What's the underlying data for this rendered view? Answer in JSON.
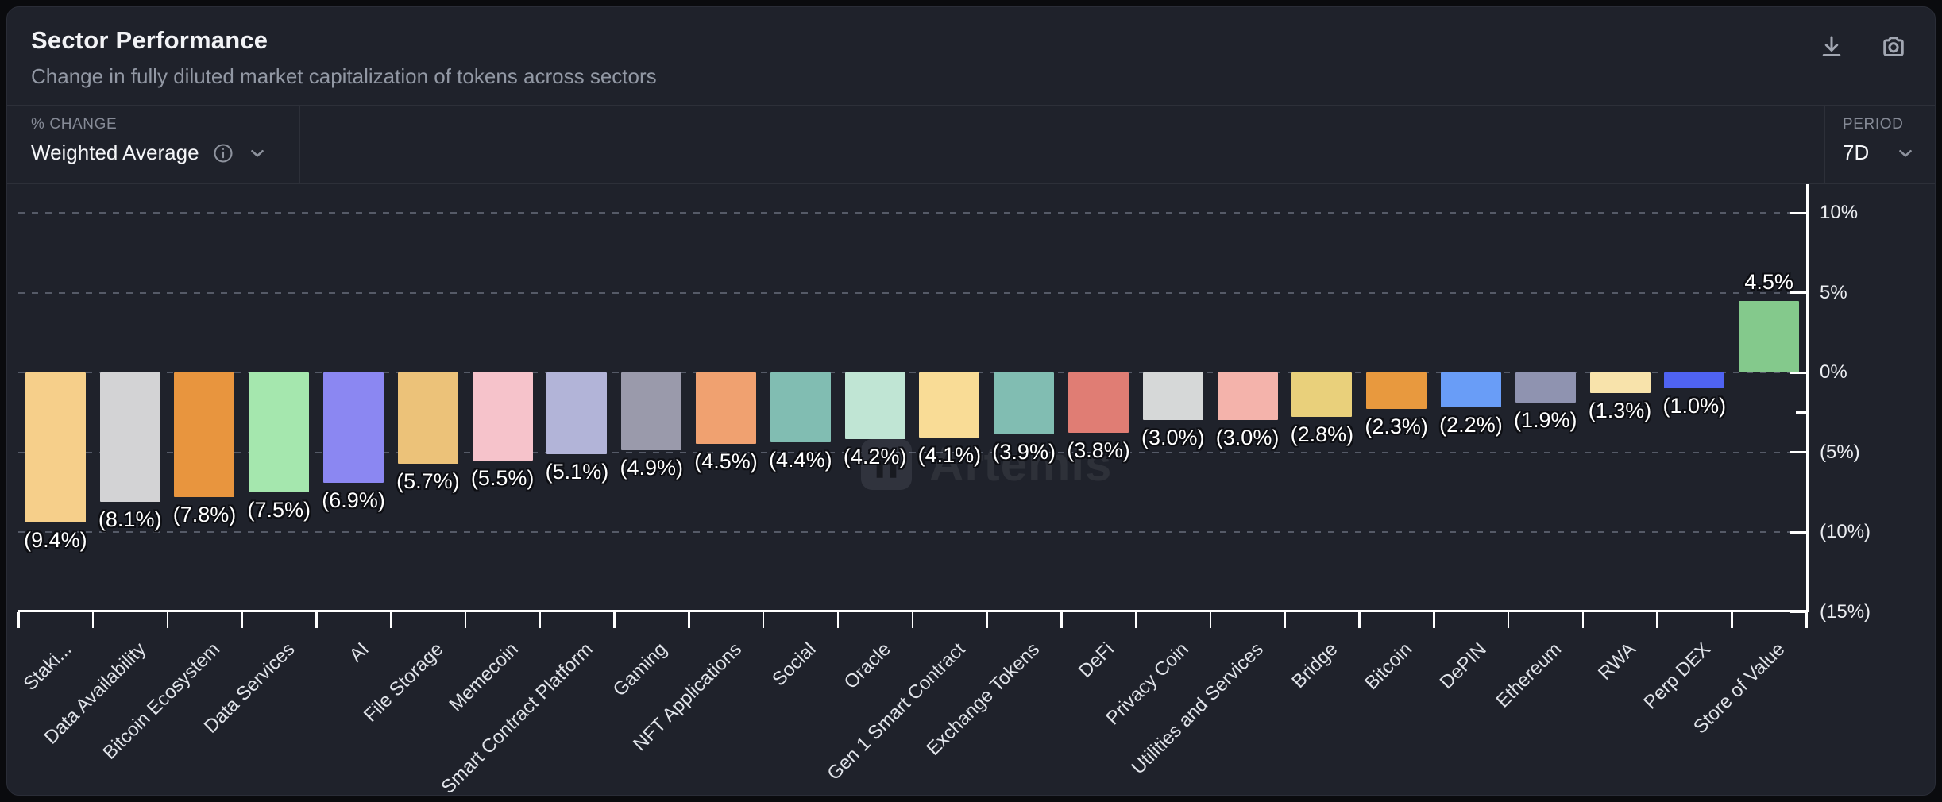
{
  "header": {
    "title": "Sector Performance",
    "subtitle": "Change in fully diluted market capitalization of tokens across sectors",
    "icons": [
      "download-icon",
      "camera-icon"
    ]
  },
  "controls": {
    "metric_label": "% CHANGE",
    "metric_value": "Weighted Average",
    "period_label": "PERIOD",
    "period_value": "7D"
  },
  "watermark": {
    "text": "Artemis"
  },
  "colors": {
    "background": "#0a0b0e",
    "card": "#1f222b",
    "axis": "#ffffff",
    "gridline": "rgba(139,146,162,0.5)",
    "muted_text": "#9298a4",
    "positive_bar": "#84c98c"
  },
  "chart_data": {
    "type": "bar",
    "title": "Sector Performance",
    "xlabel": "",
    "ylabel": "% change (7D)",
    "ylim": [
      -15,
      10
    ],
    "grid": "dashed horizontal",
    "legend": "none",
    "yticks": [
      {
        "value": 10,
        "label": "10%"
      },
      {
        "value": 5,
        "label": "5%"
      },
      {
        "value": 0,
        "label": "0%"
      },
      {
        "value": -5,
        "label": "(5%)"
      },
      {
        "value": -10,
        "label": "(10%)"
      },
      {
        "value": -15,
        "label": "(15%)"
      }
    ],
    "grid_values": [
      10,
      5,
      0,
      -5,
      -10
    ],
    "minor_ytick": -2.5,
    "categories": [
      "Staki...",
      "Data Availability",
      "Bitcoin Ecosystem",
      "Data Services",
      "AI",
      "File Storage",
      "Memecoin",
      "Smart Contract Platform",
      "Gaming",
      "NFT Applications",
      "Social",
      "Oracle",
      "Gen 1 Smart Contract",
      "Exchange Tokens",
      "DeFi",
      "Privacy Coin",
      "Utilities and Services",
      "Bridge",
      "Bitcoin",
      "DePIN",
      "Ethereum",
      "RWA",
      "Perp DEX",
      "Store of Value"
    ],
    "values": [
      -9.4,
      -8.1,
      -7.8,
      -7.5,
      -6.9,
      -5.7,
      -5.5,
      -5.1,
      -4.9,
      -4.5,
      -4.4,
      -4.2,
      -4.1,
      -3.9,
      -3.8,
      -3.0,
      -3.0,
      -2.8,
      -2.3,
      -2.2,
      -1.9,
      -1.3,
      -1.0,
      4.5
    ],
    "value_labels": [
      "(9.4%)",
      "(8.1%)",
      "(7.8%)",
      "(7.5%)",
      "(6.9%)",
      "(5.7%)",
      "(5.5%)",
      "(5.1%)",
      "(4.9%)",
      "(4.5%)",
      "(4.4%)",
      "(4.2%)",
      "(4.1%)",
      "(3.9%)",
      "(3.8%)",
      "(3.0%)",
      "(3.0%)",
      "(2.8%)",
      "(2.3%)",
      "(2.2%)",
      "(1.9%)",
      "(1.3%)",
      "(1.0%)",
      "4.5%"
    ],
    "colors": [
      "#f6cf8a",
      "#d3d3d5",
      "#e8953e",
      "#a5e7ae",
      "#8b87f2",
      "#ecc279",
      "#f6c3cb",
      "#b2b4d8",
      "#9a9aab",
      "#f0a170",
      "#81bdb2",
      "#c0e5d4",
      "#f9dc96",
      "#81bdb2",
      "#e07d74",
      "#d6d8d8",
      "#f4b3ab",
      "#e9d07b",
      "#e8993e",
      "#699df7",
      "#8f93b0",
      "#f8e3ab",
      "#4f63f2",
      "#84c98c"
    ]
  }
}
